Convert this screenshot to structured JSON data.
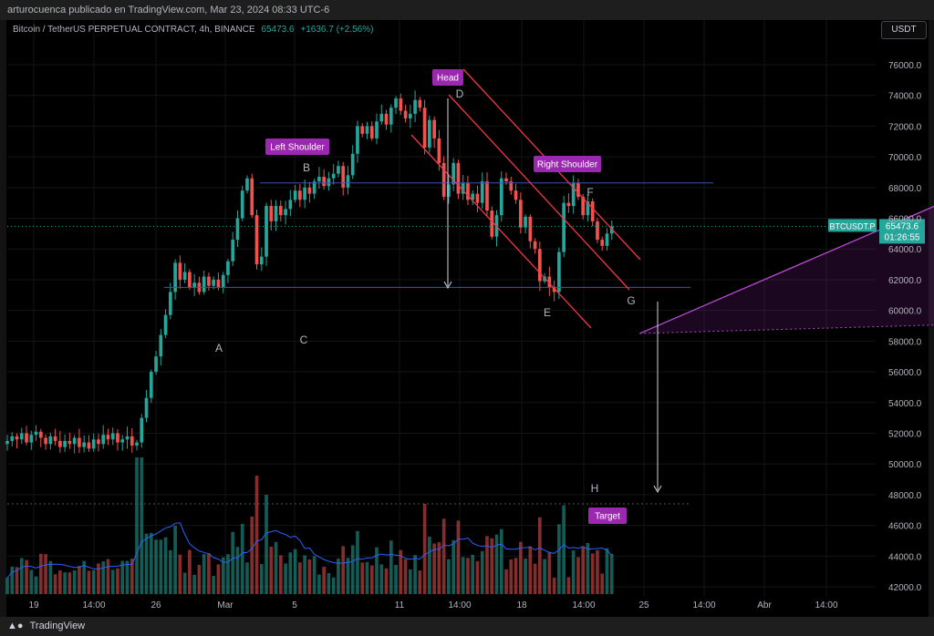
{
  "header": {
    "attribution": "arturocuenca publicado en TradingView.com, Mar 23, 2024 08:33 UTC-6"
  },
  "symbol": {
    "title": "Bitcoin / TetherUS PERPETUAL CONTRACT, 4h, BINANCE",
    "last": "65473.6",
    "change": "+1636.7 (+2.56%)"
  },
  "currency_button": "USDT",
  "price_tag": {
    "ticker": "BTCUSDT.P",
    "price": "65473.6",
    "countdown": "01:26:55"
  },
  "footer": {
    "brand": "TradingView",
    "logo_icon": "tradingview-logo-icon"
  },
  "colors": {
    "up": "#26a69a",
    "down": "#ef5350",
    "pattern_line": "#b84ad1",
    "channel": "#f23645",
    "horizontal": "#3f51b5",
    "label_bg": "#9c27b0",
    "volume_ma": "#2962ff"
  },
  "chart_data": {
    "type": "candlestick",
    "title": "Bitcoin / TetherUS PERPETUAL CONTRACT, 4h, BINANCE",
    "y_axis": {
      "ticks": [
        42000,
        44000,
        46000,
        48000,
        50000,
        52000,
        54000,
        56000,
        58000,
        60000,
        62000,
        64000,
        66000,
        68000,
        70000,
        72000,
        74000,
        76000
      ],
      "tick_labels": [
        "42000.0",
        "44000.0",
        "46000.0",
        "48000.0",
        "50000.0",
        "52000.0",
        "54000.0",
        "56000.0",
        "58000.0",
        "60000.0",
        "62000.0",
        "64000.0",
        "66000.0",
        "68000.0",
        "70000.0",
        "72000.0",
        "74000.0",
        "76000.0"
      ],
      "ylim": [
        41500,
        77500
      ]
    },
    "x_axis": {
      "tick_labels": [
        "19",
        "14:00",
        "26",
        "Mar",
        "5",
        "11",
        "14:00",
        "18",
        "14:00",
        "25",
        "14:00",
        "Abr",
        "14:00"
      ]
    },
    "pattern_points": [
      {
        "label": "A",
        "date": "2024-02-28 04:00",
        "price": 58500
      },
      {
        "label": "B",
        "date": "2024-03-05 12:00",
        "price": 69400
      },
      {
        "label": "C",
        "date": "2024-03-05 16:00",
        "price": 59100
      },
      {
        "label": "D",
        "date": "2024-03-14 04:00",
        "price": 73900
      },
      {
        "label": "E",
        "date": "2024-03-20 04:00",
        "price": 60800
      },
      {
        "label": "F",
        "date": "2024-03-21 12:00",
        "price": 68100
      },
      {
        "label": "G",
        "date": "2024-03-23 20:00",
        "price": 61300
      },
      {
        "label": "H",
        "date": "2024-03-23 20:00",
        "price": 47400
      }
    ],
    "labels": [
      "Left Shoulder",
      "Head",
      "Right Shoulder",
      "Target"
    ],
    "horizontal_levels": [
      68300,
      61500,
      47400
    ],
    "current_price": 65473.6,
    "close_series": [
      51500,
      51800,
      51600,
      52000,
      51400,
      51900,
      52100,
      51700,
      51300,
      51800,
      51500,
      51100,
      51500,
      51300,
      51700,
      51100,
      51400,
      51000,
      51600,
      51300,
      51900,
      51600,
      52000,
      51400,
      51600,
      51800,
      51200,
      51400,
      53000,
      54300,
      56000,
      57000,
      58400,
      59700,
      61200,
      63100,
      62000,
      62500,
      61500,
      61800,
      61200,
      62200,
      61600,
      62000,
      61500,
      62300,
      63200,
      64600,
      66000,
      67800,
      68600,
      66200,
      63000,
      63500,
      66800,
      65800,
      66800,
      66200,
      66600,
      67200,
      67800,
      67200,
      68000,
      67600,
      68400,
      68700,
      68100,
      68600,
      68900,
      69400,
      68000,
      68800,
      70200,
      72000,
      71500,
      72000,
      71200,
      72300,
      72800,
      72100,
      73200,
      73800,
      73000,
      72500,
      72800,
      73700,
      73200,
      70600,
      72400,
      71200,
      69600,
      67400,
      68200,
      69600,
      67600,
      68300,
      67200,
      67600,
      67000,
      68400,
      66500,
      64800,
      66200,
      68600,
      68400,
      67800,
      67200,
      65400,
      66100,
      64500,
      64000,
      61900,
      62200,
      61500,
      61200,
      63800,
      67000,
      66800,
      68300,
      67400,
      66200,
      67100,
      65800,
      64600,
      64200,
      65000,
      65473.6
    ],
    "volume_axis": "volume (unitless, no scale printed)"
  }
}
